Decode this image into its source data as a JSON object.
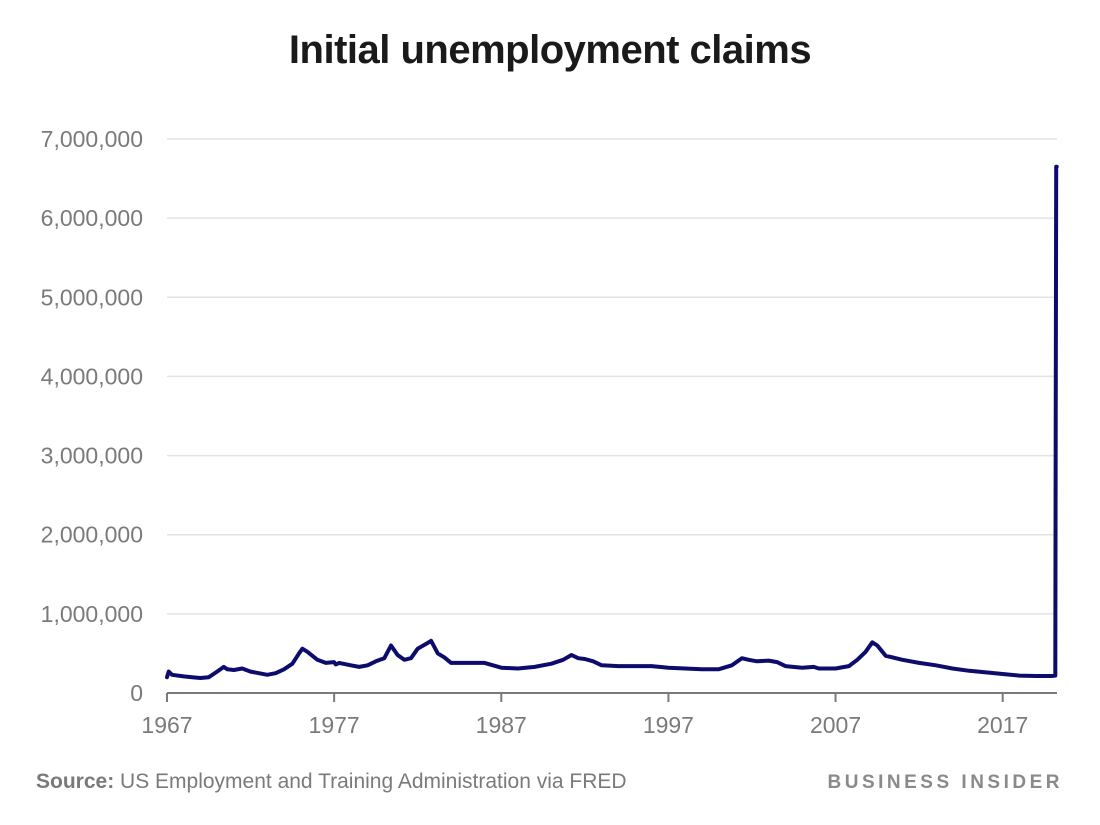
{
  "chart_data": {
    "type": "line",
    "title": "Initial unemployment claims",
    "xlabel": "",
    "ylabel": "",
    "xlim": [
      1967,
      2020.25
    ],
    "ylim": [
      0,
      7000000
    ],
    "y_ticks": [
      0,
      1000000,
      2000000,
      3000000,
      4000000,
      5000000,
      6000000,
      7000000
    ],
    "y_tick_labels": [
      "0",
      "1,000,000",
      "2,000,000",
      "3,000,000",
      "4,000,000",
      "5,000,000",
      "6,000,000",
      "7,000,000"
    ],
    "x_ticks": [
      1967,
      1977,
      1987,
      1997,
      2007,
      2017
    ],
    "x_tick_labels": [
      "1967",
      "1977",
      "1987",
      "1997",
      "2007",
      "2017"
    ],
    "grid": true,
    "line_color": "#0d0b6b",
    "series": [
      {
        "name": "",
        "x": [
          1967.0,
          1967.1,
          1967.3,
          1968.0,
          1968.5,
          1969.0,
          1969.5,
          1970.0,
          1970.4,
          1970.6,
          1971.0,
          1971.5,
          1972.0,
          1972.5,
          1973.0,
          1973.5,
          1974.0,
          1974.5,
          1974.9,
          1975.1,
          1975.4,
          1976.0,
          1976.5,
          1977.0,
          1977.1,
          1977.3,
          1978.0,
          1978.5,
          1979.0,
          1979.5,
          1980.0,
          1980.4,
          1980.8,
          1981.2,
          1981.6,
          1982.0,
          1982.5,
          1982.8,
          1983.2,
          1983.6,
          1984.0,
          1985.0,
          1986.0,
          1987.0,
          1988.0,
          1989.0,
          1990.0,
          1990.7,
          1991.2,
          1991.6,
          1992.0,
          1992.5,
          1993.0,
          1994.0,
          1995.0,
          1996.0,
          1997.0,
          1998.0,
          1999.0,
          2000.0,
          2000.8,
          2001.4,
          2001.8,
          2002.3,
          2003.0,
          2003.5,
          2004.0,
          2005.0,
          2005.7,
          2006.0,
          2007.0,
          2007.8,
          2008.3,
          2008.8,
          2009.2,
          2009.5,
          2010.0,
          2011.0,
          2012.0,
          2013.0,
          2014.0,
          2015.0,
          2016.0,
          2017.0,
          2018.0,
          2019.0,
          2019.9,
          2020.15,
          2020.17,
          2020.2,
          2020.23
        ],
        "y": [
          200000,
          270000,
          230000,
          210000,
          200000,
          190000,
          200000,
          270000,
          330000,
          300000,
          290000,
          310000,
          270000,
          250000,
          230000,
          250000,
          300000,
          370000,
          500000,
          560000,
          520000,
          420000,
          380000,
          390000,
          360000,
          380000,
          350000,
          330000,
          350000,
          400000,
          440000,
          600000,
          480000,
          420000,
          440000,
          560000,
          620000,
          660000,
          500000,
          450000,
          380000,
          380000,
          380000,
          320000,
          310000,
          330000,
          370000,
          420000,
          480000,
          440000,
          430000,
          400000,
          350000,
          340000,
          340000,
          340000,
          320000,
          310000,
          300000,
          300000,
          350000,
          440000,
          420000,
          400000,
          410000,
          390000,
          340000,
          320000,
          330000,
          310000,
          310000,
          340000,
          420000,
          520000,
          640000,
          600000,
          470000,
          420000,
          380000,
          350000,
          310000,
          280000,
          260000,
          240000,
          220000,
          215000,
          215000,
          220000,
          3300000,
          6650000,
          6650000
        ]
      }
    ]
  },
  "footer": {
    "source_label": "Source:",
    "source_text": " US Employment and Training Administration via FRED",
    "brand": "BUSINESS INSIDER"
  }
}
